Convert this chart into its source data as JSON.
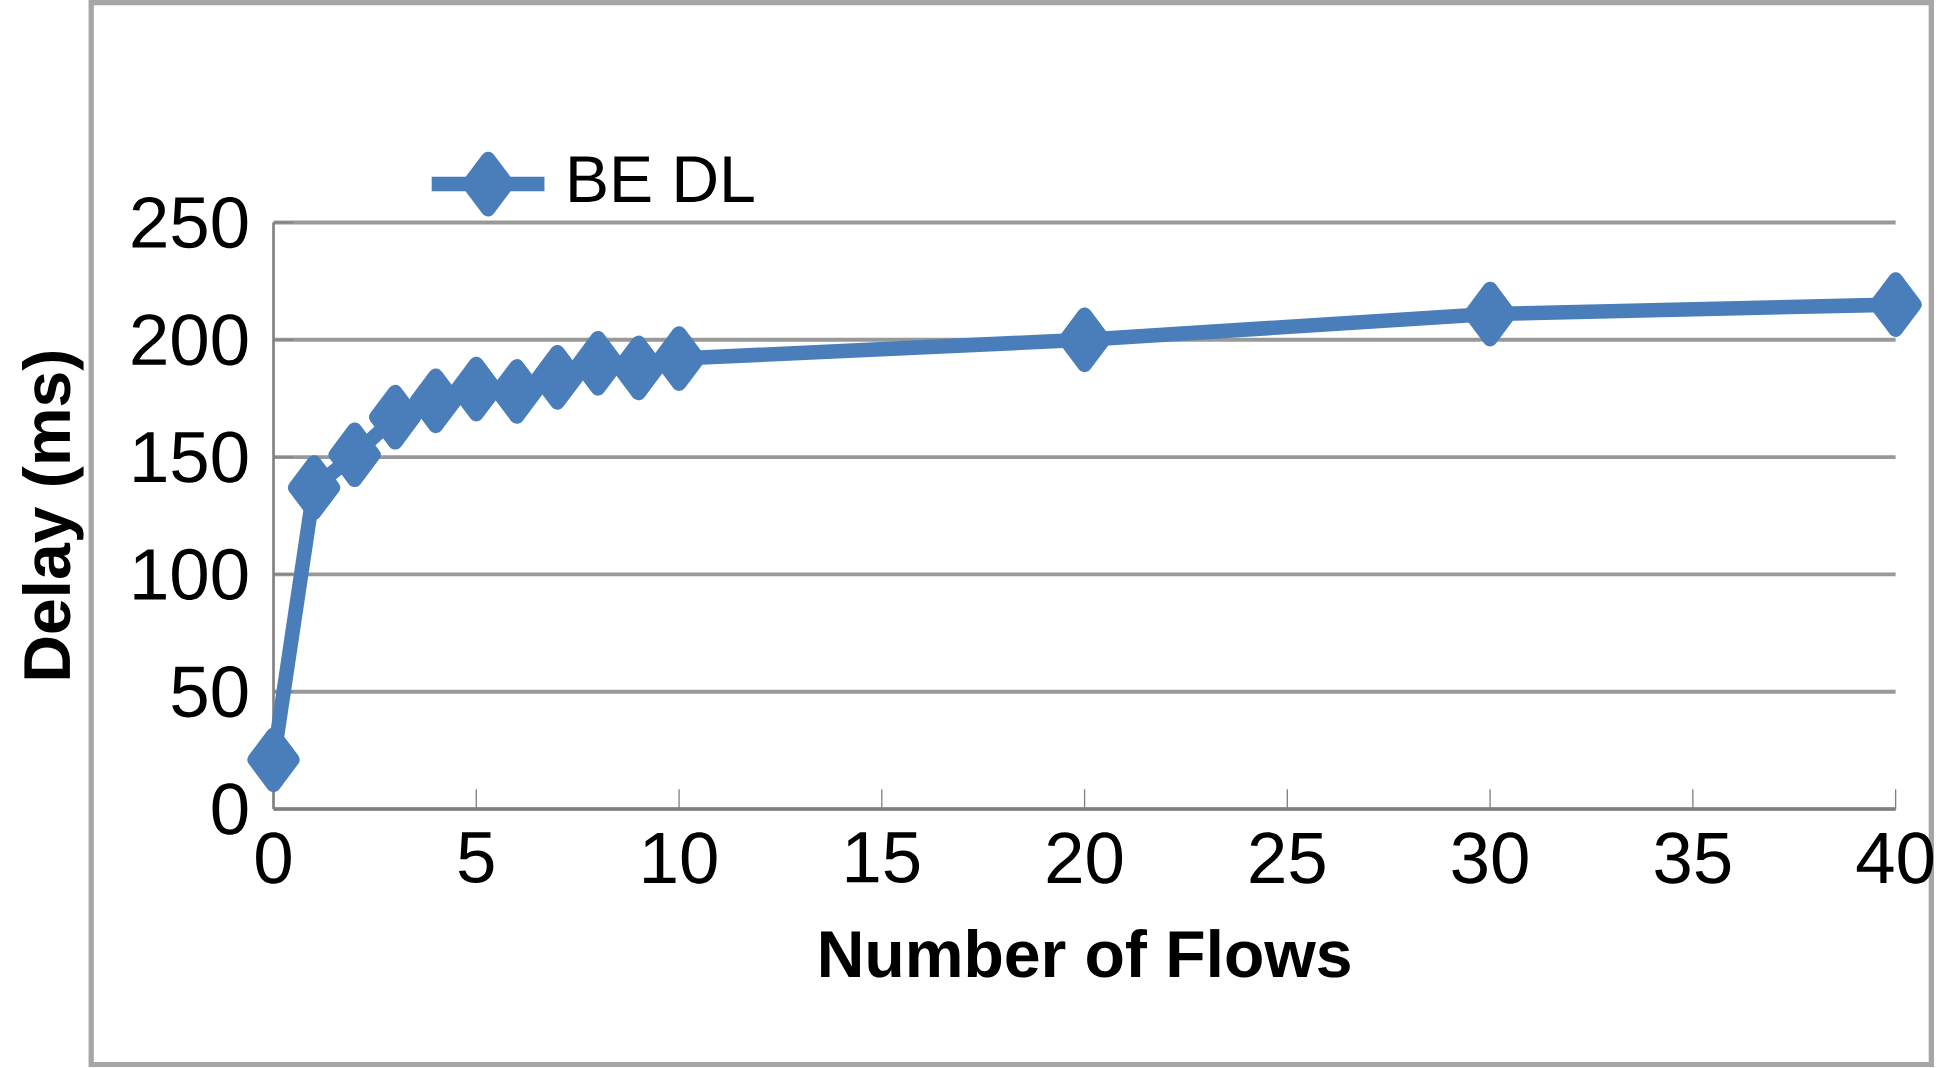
{
  "chart_data": {
    "type": "line",
    "xlabel": "Number of Flows",
    "ylabel": "Delay (ms)",
    "x": [
      0,
      1,
      2,
      3,
      4,
      5,
      6,
      7,
      8,
      9,
      10,
      20,
      30,
      40
    ],
    "series": [
      {
        "name": "BE DL",
        "color": "#4a7ebb",
        "values": [
          21,
          137,
          151,
          167,
          174,
          179,
          178,
          184,
          190,
          188,
          192,
          200,
          211,
          215
        ]
      }
    ],
    "xlim": [
      0,
      40
    ],
    "ylim": [
      0,
      250
    ],
    "xticks": [
      0,
      5,
      10,
      15,
      20,
      25,
      30,
      35,
      40
    ],
    "yticks": [
      0,
      50,
      100,
      150,
      200,
      250
    ],
    "grid": "y",
    "legend": "top left",
    "marker": "diamond",
    "line_style": "solid"
  }
}
